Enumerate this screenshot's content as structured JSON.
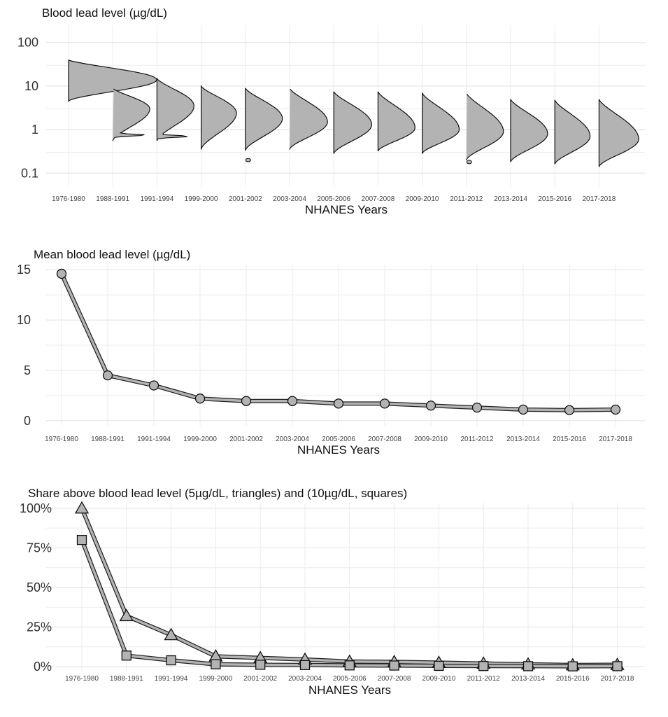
{
  "chart_data": [
    {
      "type": "violin",
      "title": "Blood lead level (µg/dL)",
      "xlabel": "NHANES Years",
      "ylabel": "",
      "y_scale": "log10",
      "ylim": [
        0.05,
        250
      ],
      "yticks": [
        0.1,
        1,
        10,
        100
      ],
      "ytick_labels": [
        "0.1",
        "1",
        "10",
        "100"
      ],
      "grid": true,
      "categories": [
        "1976-1980",
        "1988-1991",
        "1991-1994",
        "1999-2000",
        "2001-2002",
        "2003-2004",
        "2005-2006",
        "2007-2008",
        "2009-2010",
        "2011-2012",
        "2013-2014",
        "2015-2016",
        "2017-2018"
      ],
      "distributions": [
        {
          "min": 4.5,
          "max": 40,
          "mode": 14,
          "max_width_fraction": 1.0
        },
        {
          "min": 0.55,
          "max": 9,
          "mode": 3,
          "max_width_fraction": 0.42,
          "secondary_mode": 0.75
        },
        {
          "min": 0.55,
          "max": 15,
          "mode": 3.5,
          "max_width_fraction": 0.42,
          "secondary_mode": 0.7
        },
        {
          "min": 0.35,
          "max": 10,
          "mode": 2.4,
          "max_width_fraction": 0.4
        },
        {
          "min": 0.33,
          "max": 9,
          "mode": 1.8,
          "max_width_fraction": 0.42,
          "outlier": 0.2
        },
        {
          "min": 0.35,
          "max": 9,
          "mode": 1.5,
          "max_width_fraction": 0.43
        },
        {
          "min": 0.28,
          "max": 7.5,
          "mode": 1.3,
          "max_width_fraction": 0.43
        },
        {
          "min": 0.32,
          "max": 7.5,
          "mode": 1.1,
          "max_width_fraction": 0.42
        },
        {
          "min": 0.28,
          "max": 7,
          "mode": 1.0,
          "max_width_fraction": 0.42
        },
        {
          "min": 0.2,
          "max": 7,
          "mode": 0.9,
          "max_width_fraction": 0.42,
          "outlier": 0.18
        },
        {
          "min": 0.18,
          "max": 5,
          "mode": 0.8,
          "max_width_fraction": 0.42
        },
        {
          "min": 0.16,
          "max": 4.8,
          "mode": 0.7,
          "max_width_fraction": 0.4
        },
        {
          "min": 0.14,
          "max": 5,
          "mode": 0.6,
          "max_width_fraction": 0.45
        }
      ],
      "fill": "#b3b3b3",
      "stroke": "#111111"
    },
    {
      "type": "line",
      "title": "Mean blood lead level (µg/dL)",
      "xlabel": "NHANES Years",
      "ylabel": "",
      "ylim": [
        -0.5,
        15.5
      ],
      "yticks": [
        0,
        5,
        10,
        15
      ],
      "grid": true,
      "marker": "circle",
      "categories": [
        "1976-1980",
        "1988-1991",
        "1991-1994",
        "1999-2000",
        "2001-2002",
        "2003-2004",
        "2005-2006",
        "2007-2008",
        "2009-2010",
        "2011-2012",
        "2013-2014",
        "2015-2016",
        "2017-2018"
      ],
      "values": [
        14.6,
        4.5,
        3.5,
        2.2,
        1.95,
        1.95,
        1.7,
        1.7,
        1.5,
        1.3,
        1.1,
        1.05,
        1.1
      ],
      "fill": "#b3b3b3",
      "stroke": "#111111"
    },
    {
      "type": "line",
      "title": "Share above blood lead level (5µg/dL, triangles) and (10µg/dL, squares)",
      "xlabel": "NHANES Years",
      "ylabel": "",
      "ylim": [
        -0.035,
        1.035
      ],
      "yticks": [
        0,
        0.25,
        0.5,
        0.75,
        1.0
      ],
      "ytick_labels": [
        "0%",
        "25%",
        "50%",
        "75%",
        "100%"
      ],
      "grid": true,
      "categories": [
        "1976-1980",
        "1988-1991",
        "1991-1994",
        "1999-2000",
        "2001-2002",
        "2003-2004",
        "2005-2006",
        "2007-2008",
        "2009-2010",
        "2011-2012",
        "2013-2014",
        "2015-2016",
        "2017-2018"
      ],
      "series": [
        {
          "marker": "triangle",
          "values": [
            1.0,
            0.32,
            0.2,
            0.065,
            0.055,
            0.045,
            0.032,
            0.03,
            0.025,
            0.02,
            0.015,
            0.01,
            0.012
          ]
        },
        {
          "marker": "square",
          "values": [
            0.8,
            0.07,
            0.04,
            0.015,
            0.012,
            0.01,
            0.008,
            0.007,
            0.005,
            0.004,
            0.003,
            0.002,
            0.003
          ]
        }
      ],
      "fill": "#b3b3b3",
      "stroke": "#111111"
    }
  ]
}
